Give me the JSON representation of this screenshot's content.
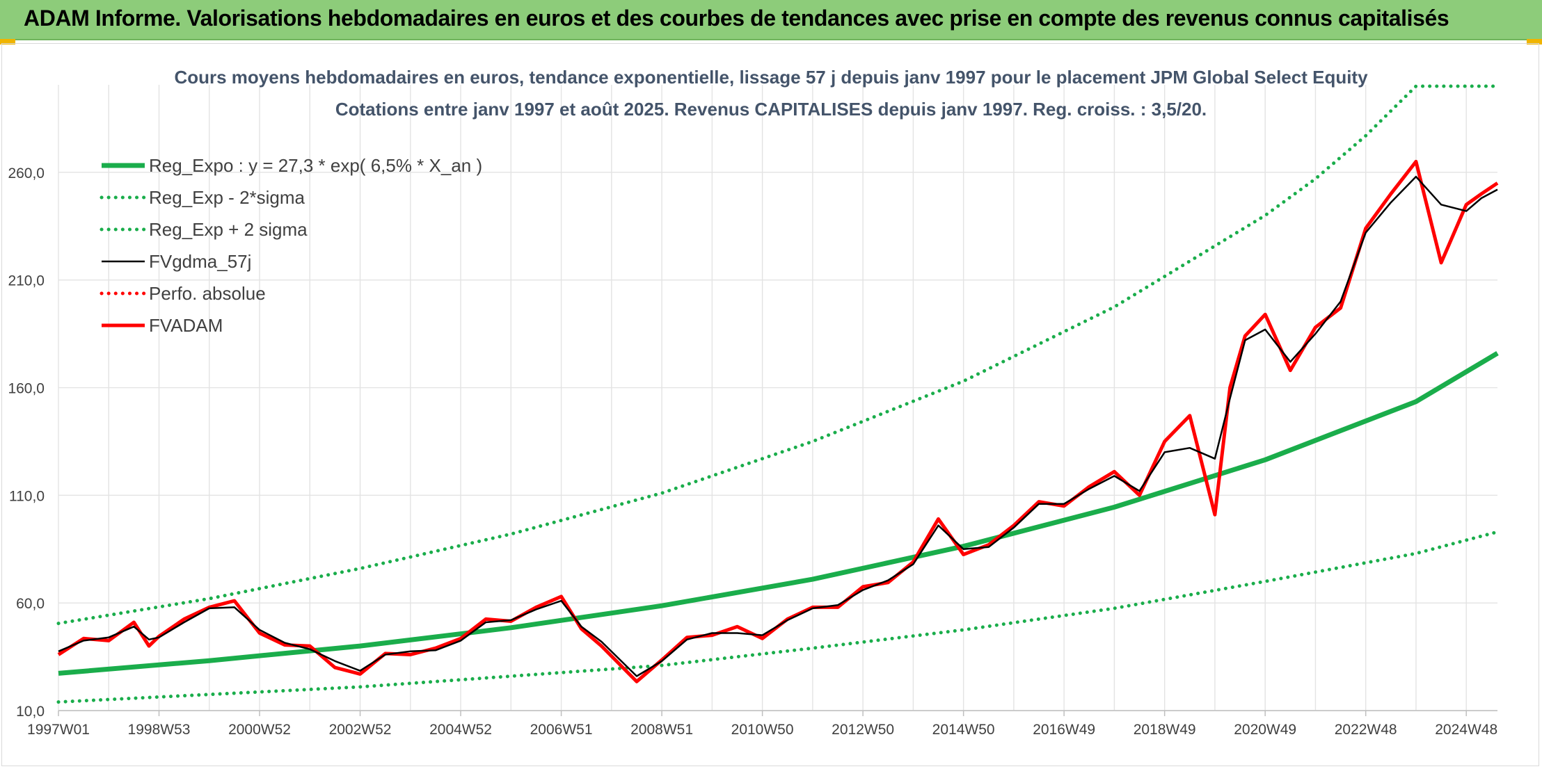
{
  "banner": {
    "title": "ADAM Informe. Valorisations hebdomadaires en euros et des courbes de tendances avec prise en compte des revenus connus capitalisés"
  },
  "colors": {
    "banner_bg": "#8dcc7a",
    "reg_green": "#1aad4b",
    "fvadam_red": "#ff0000",
    "gdma_black": "#000000",
    "grid": "#e3e3e3",
    "text": "#404040",
    "title_text": "#44546a"
  },
  "chart_data": {
    "type": "line",
    "title": "Cours moyens hebdomadaires en euros, tendance exponentielle, lissage 57 j depuis janv 1997 pour le placement JPM Global Select Equity",
    "subtitle": "Cotations entre janv 1997 et août 2025. Revenus CAPITALISES depuis janv 1997. Reg. croiss. : 3,5/20.",
    "xlabel": "",
    "ylabel": "",
    "x_range": [
      1997.0,
      2025.62
    ],
    "ylim": [
      10,
      300
    ],
    "grid": true,
    "legend_position": "top-left",
    "x_tick_labels": [
      "1997W01",
      "1998W53",
      "2000W52",
      "2002W52",
      "2004W52",
      "2006W51",
      "2008W51",
      "2010W50",
      "2012W50",
      "2014W50",
      "2016W49",
      "2018W49",
      "2020W49",
      "2022W48",
      "2024W48"
    ],
    "x_tick_positions": [
      1997.0,
      1999.0,
      2001.0,
      2003.0,
      2005.0,
      2007.0,
      2009.0,
      2011.0,
      2013.0,
      2015.0,
      2017.0,
      2019.0,
      2021.0,
      2023.0,
      2025.0
    ],
    "y_ticks": [
      10,
      60,
      110,
      160,
      210,
      260
    ],
    "y_tick_labels": [
      "10,0",
      "60,0",
      "110,0",
      "160,0",
      "210,0",
      "260,0"
    ],
    "series": [
      {
        "name": "Reg_Expo : y = 27,3 * exp( 6,5% *  X_an )",
        "style": "solid-thick",
        "color": "#1aad4b",
        "x": [
          1997.0,
          2000.0,
          2003.0,
          2006.0,
          2009.0,
          2012.0,
          2015.0,
          2018.0,
          2021.0,
          2024.0,
          2025.62
        ],
        "values": [
          27.3,
          33.2,
          40.0,
          48.5,
          58.7,
          71.0,
          86.3,
          104.5,
          126.5,
          153.5,
          176.0
        ]
      },
      {
        "name": "Reg_Exp - 2*sigma",
        "style": "dotted",
        "color": "#1aad4b",
        "x": [
          1997.0,
          2000.0,
          2003.0,
          2006.0,
          2009.0,
          2012.0,
          2015.0,
          2018.0,
          2021.0,
          2024.0,
          2025.62
        ],
        "values": [
          14.0,
          17.5,
          21.0,
          26.0,
          31.0,
          39.0,
          47.5,
          57.5,
          70.0,
          83.0,
          93.0
        ]
      },
      {
        "name": "Reg_Exp + 2 sigma",
        "style": "dotted",
        "color": "#1aad4b",
        "x": [
          1997.0,
          2000.0,
          2003.0,
          2006.0,
          2009.0,
          2012.0,
          2015.0,
          2018.0,
          2021.0,
          2022.0,
          2023.0,
          2024.0,
          2025.62
        ],
        "values": [
          50.5,
          62.0,
          76.0,
          92.0,
          111.0,
          135.0,
          163.0,
          197.5,
          240.0,
          257.0,
          277.0,
          300.0,
          300.0
        ]
      },
      {
        "name": "FVgdma_57j",
        "style": "solid-thin",
        "color": "#000000",
        "x": [
          1997.0,
          1997.5,
          1998.0,
          1998.5,
          1998.8,
          1999.0,
          1999.5,
          2000.0,
          2000.5,
          2001.0,
          2001.5,
          2002.0,
          2002.5,
          2003.0,
          2003.5,
          2004.0,
          2004.5,
          2005.0,
          2005.5,
          2006.0,
          2006.5,
          2007.0,
          2007.4,
          2007.8,
          2008.5,
          2009.0,
          2009.5,
          2010.0,
          2010.5,
          2011.0,
          2011.5,
          2012.0,
          2012.5,
          2013.0,
          2013.5,
          2014.0,
          2014.5,
          2015.0,
          2015.5,
          2016.0,
          2016.5,
          2017.0,
          2017.5,
          2018.0,
          2018.5,
          2019.0,
          2019.5,
          2020.0,
          2020.3,
          2020.6,
          2021.0,
          2021.5,
          2022.0,
          2022.5,
          2023.0,
          2023.5,
          2024.0,
          2024.5,
          2025.0,
          2025.3,
          2025.62
        ],
        "values": [
          37.5,
          42.5,
          44.0,
          49.0,
          43.0,
          44.0,
          51.0,
          57.5,
          58.0,
          47.5,
          41.5,
          38.5,
          33.0,
          28.5,
          36.0,
          37.5,
          38.0,
          42.5,
          51.0,
          52.0,
          57.0,
          61.0,
          49.0,
          42.0,
          26.0,
          33.0,
          43.0,
          46.0,
          46.0,
          45.0,
          52.0,
          57.5,
          59.0,
          66.0,
          70.5,
          78.0,
          96.0,
          85.0,
          86.0,
          95.0,
          106.0,
          106.0,
          113.0,
          119.0,
          112.0,
          130.0,
          132.0,
          127.0,
          155.0,
          182.0,
          187.0,
          172.0,
          185.0,
          200.0,
          232.0,
          246.0,
          258.0,
          245.0,
          242.0,
          248.0,
          252.0
        ]
      },
      {
        "name": "Perfo. absolue",
        "style": "dotted",
        "color": "#ff0000",
        "x": [],
        "values": []
      },
      {
        "name": "FVADAM",
        "style": "solid-thick",
        "color": "#ff0000",
        "x": [
          1997.0,
          1997.5,
          1998.0,
          1998.5,
          1998.8,
          1999.0,
          1999.5,
          2000.0,
          2000.5,
          2001.0,
          2001.5,
          2002.0,
          2002.5,
          2003.0,
          2003.5,
          2004.0,
          2004.5,
          2005.0,
          2005.5,
          2006.0,
          2006.5,
          2007.0,
          2007.4,
          2007.8,
          2008.5,
          2009.0,
          2009.5,
          2010.0,
          2010.5,
          2011.0,
          2011.5,
          2012.0,
          2012.5,
          2013.0,
          2013.5,
          2014.0,
          2014.5,
          2015.0,
          2015.5,
          2016.0,
          2016.5,
          2017.0,
          2017.5,
          2018.0,
          2018.5,
          2019.0,
          2019.5,
          2020.0,
          2020.3,
          2020.6,
          2021.0,
          2021.5,
          2022.0,
          2022.5,
          2023.0,
          2023.5,
          2024.0,
          2024.5,
          2025.0,
          2025.3,
          2025.62
        ],
        "values": [
          36.0,
          43.5,
          42.5,
          51.0,
          40.0,
          44.5,
          52.5,
          58.0,
          61.0,
          46.0,
          40.5,
          40.0,
          30.0,
          27.0,
          36.5,
          36.0,
          39.0,
          43.5,
          52.5,
          51.5,
          58.0,
          63.0,
          48.0,
          40.0,
          23.5,
          33.5,
          44.0,
          45.0,
          49.0,
          43.5,
          52.5,
          58.0,
          58.0,
          67.5,
          69.5,
          79.0,
          99.0,
          82.5,
          87.0,
          96.0,
          107.0,
          105.0,
          114.0,
          121.0,
          110.0,
          135.0,
          147.0,
          101.0,
          160.0,
          184.0,
          194.0,
          168.0,
          188.0,
          197.0,
          234.0,
          250.0,
          265.0,
          218.0,
          245.0,
          250.0,
          255.0
        ]
      }
    ]
  }
}
